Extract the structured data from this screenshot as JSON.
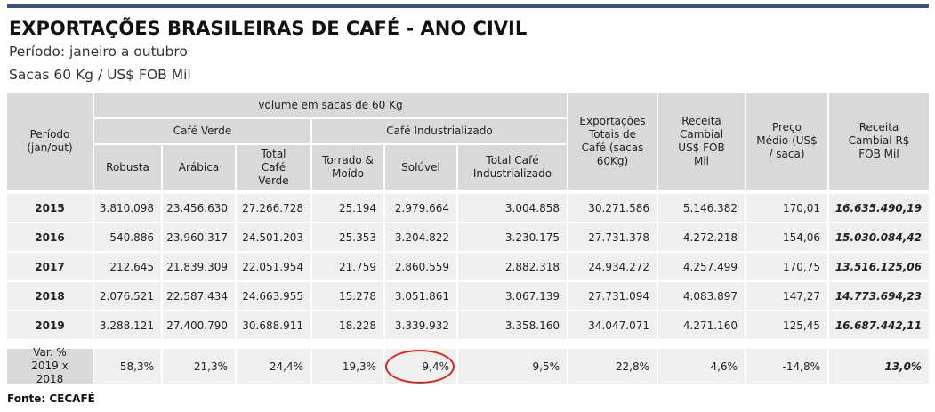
{
  "title": "EXPORTAÇÕES BRASILEIRAS DE CAFÉ - ANO CIVIL",
  "subtitle_period": "Período: janeiro a outubro",
  "subtitle_units": "Sacas 60 Kg / US$ FOB Mil",
  "headers": {
    "periodo": "Período (jan/out)",
    "volume_group": "volume em sacas de 60 Kg",
    "cafe_verde": "Café Verde",
    "cafe_industrializado": "Café Industrializado",
    "robusta": "Robusta",
    "arabica": "Arábica",
    "total_verde": "Total Café Verde",
    "torrado": "Torrado & Moído",
    "soluvel": "Solúvel",
    "total_industrializado": "Total Café Industrializado",
    "exportacoes_totais": "Exportações Totais de Café (sacas 60Kg)",
    "receita_us": "Receita Cambial US$ FOB Mil",
    "preco_medio": "Preço Médio (US$ / saca)",
    "receita_rs": "Receita Cambial R$ FOB Mil"
  },
  "rows": [
    {
      "year": "2015",
      "robusta": "3.810.098",
      "arabica": "23.456.630",
      "total_verde": "27.266.728",
      "torrado": "25.194",
      "soluvel": "2.979.664",
      "total_ind": "3.004.858",
      "total": "30.271.586",
      "receita_us": "5.146.382",
      "preco": "170,01",
      "receita_rs": "16.635.490,19"
    },
    {
      "year": "2016",
      "robusta": "540.886",
      "arabica": "23.960.317",
      "total_verde": "24.501.203",
      "torrado": "25.353",
      "soluvel": "3.204.822",
      "total_ind": "3.230.175",
      "total": "27.731.378",
      "receita_us": "4.272.218",
      "preco": "154,06",
      "receita_rs": "15.030.084,42"
    },
    {
      "year": "2017",
      "robusta": "212.645",
      "arabica": "21.839.309",
      "total_verde": "22.051.954",
      "torrado": "21.759",
      "soluvel": "2.860.559",
      "total_ind": "2.882.318",
      "total": "24.934.272",
      "receita_us": "4.257.499",
      "preco": "170,75",
      "receita_rs": "13.516.125,06"
    },
    {
      "year": "2018",
      "robusta": "2.076.521",
      "arabica": "22.587.434",
      "total_verde": "24.663.955",
      "torrado": "15.278",
      "soluvel": "3.051.861",
      "total_ind": "3.067.139",
      "total": "27.731.094",
      "receita_us": "4.083.897",
      "preco": "147,27",
      "receita_rs": "14.773.694,23"
    },
    {
      "year": "2019",
      "robusta": "3.288.121",
      "arabica": "27.400.790",
      "total_verde": "30.688.911",
      "torrado": "18.228",
      "soluvel": "3.339.932",
      "total_ind": "3.358.160",
      "total": "34.047.071",
      "receita_us": "4.271.160",
      "preco": "125,45",
      "receita_rs": "16.687.442,11"
    }
  ],
  "variation": {
    "label": "Var. % 2019 x 2018",
    "robusta": "58,3%",
    "arabica": "21,3%",
    "total_verde": "24,4%",
    "torrado": "19,3%",
    "soluvel": "9,4%",
    "total_ind": "9,5%",
    "total": "22,8%",
    "receita_us": "4,6%",
    "preco": "-14,8%",
    "receita_rs": "13,0%"
  },
  "source": "Fonte: CECAFÉ",
  "highlight_color": "#e02020",
  "header_bar_color": "#3c5380"
}
